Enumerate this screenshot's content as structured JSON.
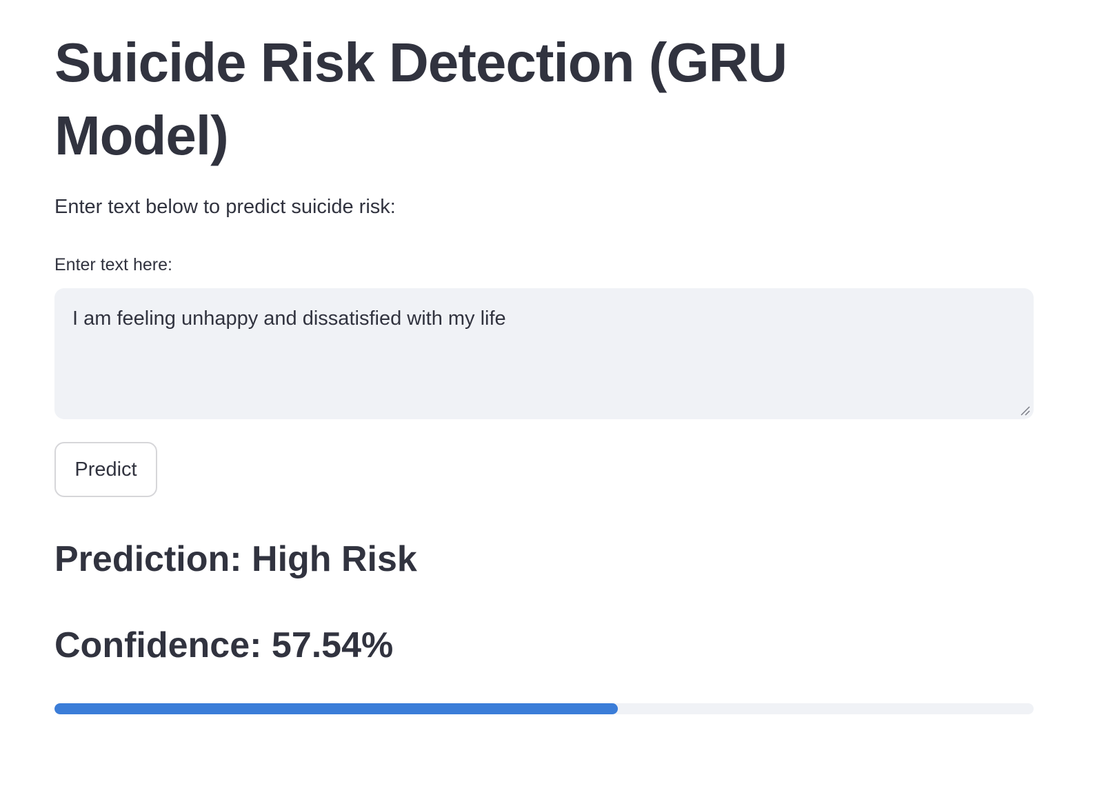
{
  "app": {
    "title": "Suicide Risk Detection (GRU Model)",
    "intro": "Enter text below to predict suicide risk:"
  },
  "input": {
    "label": "Enter text here:",
    "value": "I am feeling unhappy and dissatisfied with my life"
  },
  "actions": {
    "predict_label": "Predict"
  },
  "result": {
    "prediction_text": "Prediction: High Risk",
    "confidence_text": "Confidence: 57.54%",
    "confidence_fraction": 0.5754
  },
  "colors": {
    "progress_fill": "#3b7dd8",
    "progress_track": "#f0f2f6",
    "input_background": "#f0f2f6",
    "text": "#31333f"
  }
}
